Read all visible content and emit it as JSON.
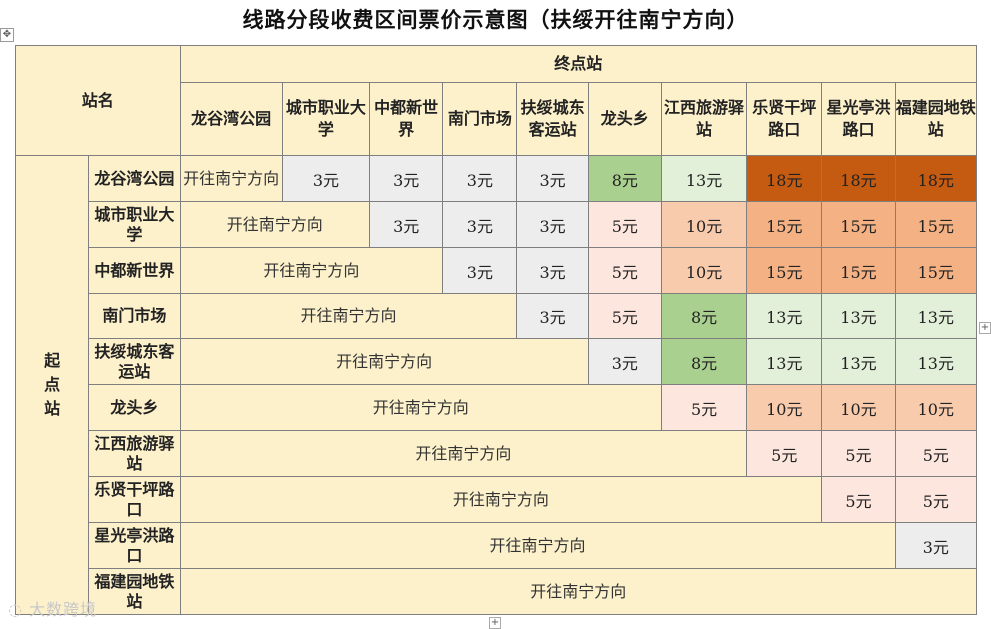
{
  "title": "线路分段收费区间票价示意图（扶绥开往南宁方向）",
  "header": {
    "station_name": "站名",
    "terminal": "终点站",
    "origin": "起点站",
    "columns": [
      "龙谷湾公园",
      "城市职业大学",
      "中都新世界",
      "南门市场",
      "扶绥城东客运站",
      "龙头乡",
      "江西旅游驿站",
      "乐贤干坪路口",
      "星光亭洪路口",
      "福建园地铁站"
    ]
  },
  "direction_label": "开往南宁方向",
  "rows": [
    {
      "name": "龙谷湾公园",
      "fares": [
        "3元",
        "3元",
        "3元",
        "3元",
        "8元",
        "13元",
        "18元",
        "18元",
        "18元"
      ]
    },
    {
      "name": "城市职业大学",
      "fares": [
        "3元",
        "3元",
        "3元",
        "5元",
        "10元",
        "15元",
        "15元",
        "15元"
      ]
    },
    {
      "name": "中都新世界",
      "fares": [
        "3元",
        "3元",
        "5元",
        "10元",
        "15元",
        "15元",
        "15元"
      ]
    },
    {
      "name": "南门市场",
      "fares": [
        "3元",
        "5元",
        "8元",
        "13元",
        "13元",
        "13元"
      ]
    },
    {
      "name": "扶绥城东客运站",
      "fares": [
        "3元",
        "8元",
        "13元",
        "13元",
        "13元"
      ]
    },
    {
      "name": "龙头乡",
      "fares": [
        "5元",
        "10元",
        "10元",
        "10元"
      ]
    },
    {
      "name": "江西旅游驿站",
      "fares": [
        "5元",
        "5元",
        "5元"
      ]
    },
    {
      "name": "乐贤干坪路口",
      "fares": [
        "5元",
        "5元"
      ]
    },
    {
      "name": "星光亭洪路口",
      "fares": [
        "3元"
      ]
    },
    {
      "name": "福建园地铁站",
      "fares": []
    }
  ],
  "fare_colors": {
    "3元": "#ededed",
    "5元": "#fce6dd",
    "8元": "#a9d08e",
    "10元": "#f8cbad",
    "13元": "#e2efd9",
    "15元": "#f4b183",
    "18元": "#c55a11"
  },
  "watermark": "大数跨境",
  "icons": {
    "move_handle": "move-arrows-icon",
    "add_handle": "plus-icon"
  }
}
